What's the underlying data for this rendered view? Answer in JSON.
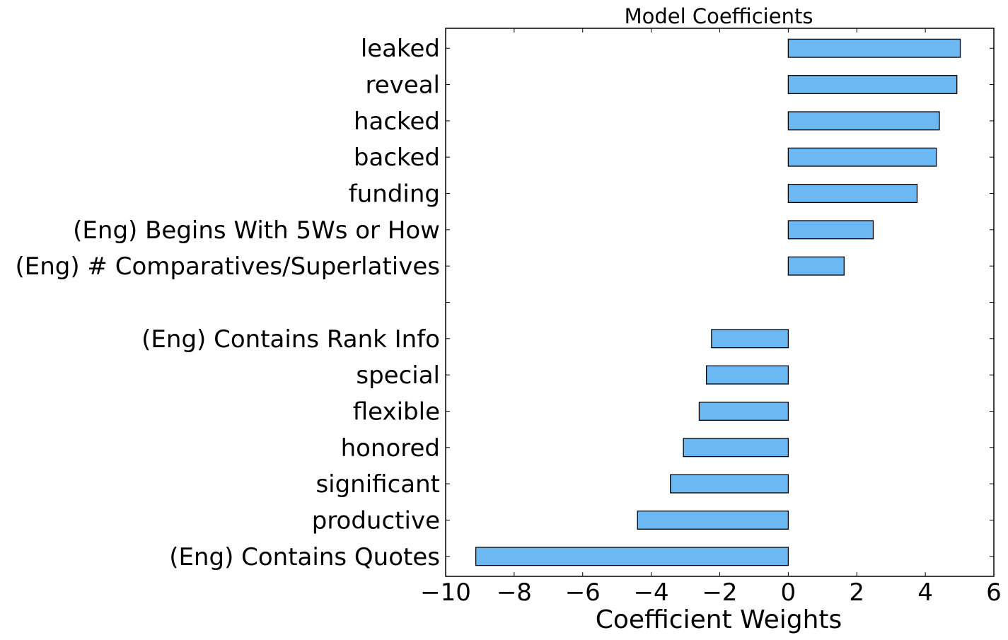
{
  "chart_data": {
    "type": "bar",
    "orientation": "horizontal",
    "title": "Model Coefficients",
    "xlabel": "Coefficient Weights",
    "ylabel": "",
    "xlim": [
      -10,
      6
    ],
    "xticks": [
      -10,
      -8,
      -6,
      -4,
      -2,
      0,
      2,
      4,
      6
    ],
    "xtick_labels": [
      "−10",
      "−8",
      "−6",
      "−4",
      "−2",
      "0",
      "2",
      "4",
      "6"
    ],
    "categories": [
      "leaked",
      "reveal",
      "hacked",
      "backed",
      "funding",
      "(Eng) Begins With 5Ws or How",
      "(Eng) # Comparatives/Superlatives",
      "",
      "(Eng) Contains Rank Info",
      "special",
      "flexible",
      "honored",
      "significant",
      "productive",
      "(Eng) Contains Quotes"
    ],
    "values": [
      5.02,
      4.92,
      4.41,
      4.32,
      3.76,
      2.48,
      1.63,
      null,
      -2.24,
      -2.39,
      -2.6,
      -3.06,
      -3.44,
      -4.4,
      -9.12
    ],
    "bar_color": "#6cb8f3",
    "edge_color": "#000000",
    "grid": false,
    "legend": "none"
  }
}
